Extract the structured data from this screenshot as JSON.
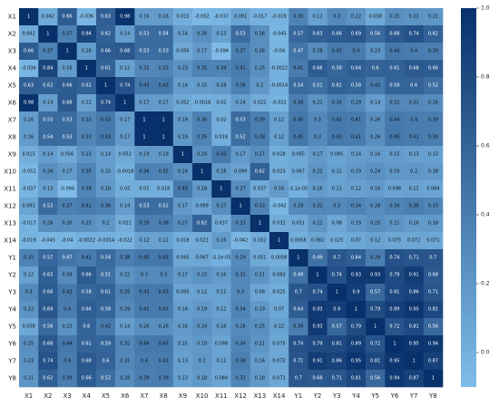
{
  "chart_data": {
    "type": "heatmap",
    "title": "",
    "xlabel": "",
    "ylabel": "",
    "labels": [
      "X1",
      "X2",
      "X3",
      "X4",
      "X5",
      "X6",
      "X7",
      "X8",
      "X9",
      "X10",
      "X11",
      "X12",
      "X13",
      "X14",
      "Y1",
      "Y2",
      "Y3",
      "Y4",
      "Y5",
      "Y6",
      "Y7",
      "Y8"
    ],
    "matrix": [
      [
        "1",
        "0.042",
        "0.66",
        "-0.036",
        "0.63",
        "0.98",
        "0.16",
        "0.16",
        "0.015",
        "-0.052",
        "-0.037",
        "0.091",
        "-0.017",
        "-0.019",
        "0.35",
        "0.12",
        "0.3",
        "0.22",
        "0.058",
        "0.25",
        "0.23",
        "0.21"
      ],
      [
        "0.042",
        "1",
        "0.37",
        "0.84",
        "0.62",
        "0.14",
        "0.53",
        "0.54",
        "0.14",
        "0.26",
        "0.13",
        "0.53",
        "0.26",
        "-0.045",
        "0.57",
        "0.63",
        "0.66",
        "0.69",
        "0.56",
        "0.68",
        "0.74",
        "0.62"
      ],
      [
        "0.66",
        "0.37",
        "1",
        "0.16",
        "0.66",
        "0.68",
        "0.53",
        "0.53",
        "0.056",
        "0.17",
        "-0.094",
        "0.37",
        "0.26",
        "-0.04",
        "0.47",
        "0.28",
        "0.42",
        "0.4",
        "0.23",
        "0.44",
        "0.4",
        "0.39"
      ],
      [
        "-0.036",
        "0.84",
        "0.16",
        "1",
        "0.61",
        "0.12",
        "0.32",
        "0.33",
        "0.23",
        "0.35",
        "0.34",
        "0.41",
        "0.25",
        "-0.0022",
        "0.41",
        "0.66",
        "0.58",
        "0.64",
        "0.6",
        "0.61",
        "0.68",
        "0.66"
      ],
      [
        "0.63",
        "0.62",
        "0.66",
        "0.61",
        "1",
        "0.74",
        "0.43",
        "0.43",
        "0.14",
        "0.15",
        "0.18",
        "0.36",
        "0.2",
        "-0.0014",
        "0.54",
        "0.51",
        "0.61",
        "0.58",
        "0.42",
        "0.59",
        "0.6",
        "0.52"
      ],
      [
        "0.98",
        "0.14",
        "0.68",
        "0.12",
        "0.74",
        "1",
        "0.17",
        "0.17",
        "0.052",
        "-0.0018",
        "0.02",
        "0.14",
        "0.022",
        "-0.022",
        "0.38",
        "0.22",
        "0.35",
        "0.29",
        "0.14",
        "0.32",
        "0.31",
        "0.28"
      ],
      [
        "0.16",
        "0.53",
        "0.53",
        "0.32",
        "0.43",
        "0.17",
        "1",
        "1",
        "0.19",
        "0.36",
        "0.02",
        "0.53",
        "0.39",
        "0.12",
        "0.45",
        "0.3",
        "0.43",
        "0.41",
        "0.26",
        "0.44",
        "0.4",
        "0.39"
      ],
      [
        "0.16",
        "0.54",
        "0.53",
        "0.33",
        "0.43",
        "0.17",
        "1",
        "1",
        "0.19",
        "0.35",
        "0.018",
        "0.52",
        "0.38",
        "0.12",
        "0.45",
        "0.3",
        "0.43",
        "0.41",
        "0.26",
        "0.45",
        "0.41",
        "0.39"
      ],
      [
        "0.015",
        "0.14",
        "0.056",
        "0.23",
        "0.14",
        "0.052",
        "0.19",
        "0.19",
        "1",
        "0.24",
        "0.43",
        "0.17",
        "0.27",
        "0.018",
        "0.065",
        "0.17",
        "0.095",
        "0.14",
        "0.16",
        "0.15",
        "0.13",
        "0.13"
      ],
      [
        "-0.052",
        "0.26",
        "0.17",
        "0.35",
        "0.15",
        "-0.0018",
        "0.36",
        "0.35",
        "0.24",
        "1",
        "0.18",
        "0.099",
        "0.62",
        "0.023",
        "0.067",
        "0.22",
        "0.12",
        "0.19",
        "0.24",
        "0.19",
        "0.2",
        "0.18"
      ],
      [
        "-0.037",
        "0.13",
        "-0.094",
        "0.34",
        "0.18",
        "0.02",
        "0.02",
        "0.018",
        "0.43",
        "0.18",
        "1",
        "0.27",
        "0.037",
        "0.16",
        "-5.1e-05",
        "0.16",
        "0.11",
        "0.12",
        "0.16",
        "0.098",
        "0.11",
        "0.084"
      ],
      [
        "0.091",
        "0.53",
        "0.37",
        "0.41",
        "0.36",
        "0.14",
        "0.53",
        "0.52",
        "0.17",
        "0.099",
        "0.27",
        "1",
        "0.33",
        "-0.042",
        "0.29",
        "0.32",
        "0.3",
        "0.34",
        "0.28",
        "0.34",
        "0.38",
        "0.33"
      ],
      [
        "-0.017",
        "0.26",
        "0.26",
        "0.25",
        "0.2",
        "0.022",
        "0.39",
        "0.38",
        "0.27",
        "0.62",
        "0.037",
        "0.33",
        "1",
        "0.032",
        "0.051",
        "0.21",
        "0.08",
        "0.19",
        "0.25",
        "0.21",
        "0.16",
        "0.18"
      ],
      [
        "-0.019",
        "-0.045",
        "-0.04",
        "-0.0022",
        "-0.0014",
        "-0.022",
        "0.12",
        "0.12",
        "0.018",
        "0.023",
        "0.16",
        "-0.042",
        "0.032",
        "1",
        "0.0058",
        "0.082",
        "0.025",
        "0.07",
        "0.12",
        "0.075",
        "0.072",
        "0.071"
      ],
      [
        "0.35",
        "0.57",
        "0.47",
        "0.41",
        "0.54",
        "0.38",
        "0.45",
        "0.45",
        "0.065",
        "0.067",
        "-5.1e-05",
        "0.29",
        "0.051",
        "0.0058",
        "1",
        "0.49",
        "0.7",
        "0.64",
        "0.39",
        "0.74",
        "0.71",
        "0.7"
      ],
      [
        "0.12",
        "0.63",
        "0.28",
        "0.66",
        "0.51",
        "0.22",
        "0.3",
        "0.3",
        "0.17",
        "0.22",
        "0.16",
        "0.32",
        "0.21",
        "0.082",
        "0.49",
        "1",
        "0.74",
        "0.93",
        "0.93",
        "0.79",
        "0.91",
        "0.68"
      ],
      [
        "0.3",
        "0.66",
        "0.42",
        "0.58",
        "0.61",
        "0.35",
        "0.43",
        "0.43",
        "0.095",
        "0.12",
        "0.11",
        "0.3",
        "0.08",
        "0.025",
        "0.7",
        "0.74",
        "1",
        "0.9",
        "0.57",
        "0.81",
        "0.86",
        "0.71"
      ],
      [
        "0.22",
        "0.69",
        "0.4",
        "0.64",
        "0.58",
        "0.29",
        "0.41",
        "0.41",
        "0.14",
        "0.19",
        "0.12",
        "0.34",
        "0.19",
        "0.07",
        "0.64",
        "0.93",
        "0.9",
        "1",
        "0.79",
        "0.89",
        "0.95",
        "0.81"
      ],
      [
        "0.058",
        "0.56",
        "0.23",
        "0.6",
        "0.42",
        "0.14",
        "0.26",
        "0.26",
        "0.16",
        "0.24",
        "0.16",
        "0.28",
        "0.25",
        "0.12",
        "0.39",
        "0.93",
        "0.57",
        "0.79",
        "1",
        "0.72",
        "0.81",
        "0.56"
      ],
      [
        "0.25",
        "0.68",
        "0.44",
        "0.61",
        "0.59",
        "0.32",
        "0.44",
        "0.45",
        "0.15",
        "0.19",
        "0.098",
        "0.34",
        "0.21",
        "0.075",
        "0.74",
        "0.79",
        "0.81",
        "0.89",
        "0.72",
        "1",
        "0.95",
        "0.94"
      ],
      [
        "0.23",
        "0.74",
        "0.4",
        "0.68",
        "0.6",
        "0.31",
        "0.4",
        "0.41",
        "0.13",
        "0.2",
        "0.11",
        "0.38",
        "0.16",
        "0.072",
        "0.71",
        "0.91",
        "0.86",
        "0.95",
        "0.81",
        "0.95",
        "1",
        "0.87"
      ],
      [
        "0.21",
        "0.62",
        "0.39",
        "0.66",
        "0.52",
        "0.28",
        "0.39",
        "0.39",
        "0.13",
        "0.18",
        "0.084",
        "0.33",
        "0.18",
        "0.071",
        "0.7",
        "0.68",
        "0.71",
        "0.81",
        "0.56",
        "0.94",
        "0.87",
        "1"
      ]
    ],
    "vmin": -0.1,
    "vmax": 1.0,
    "colormap": [
      "#7fbde8",
      "#08306b"
    ],
    "colorbar_ticks": [
      "0.0",
      "0.2",
      "0.4",
      "0.6",
      "0.8",
      "1.0"
    ],
    "grid": false,
    "legend": "colorbar-right"
  }
}
